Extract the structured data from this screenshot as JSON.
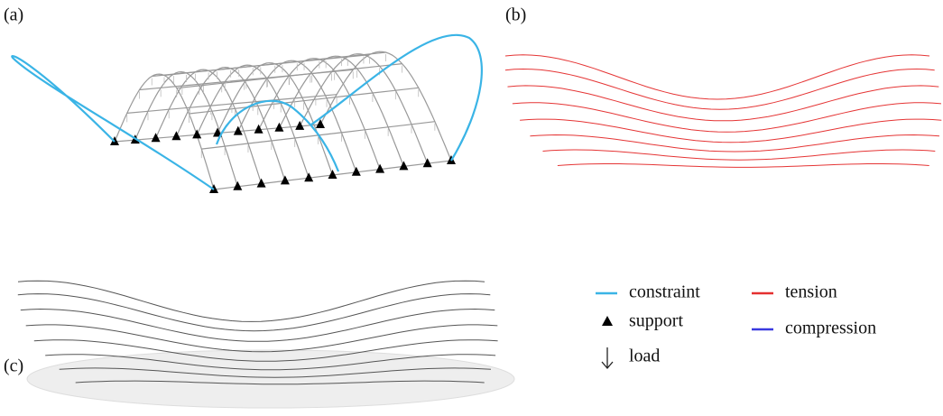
{
  "panel_labels": [
    "(a)",
    "(b)",
    "(c)"
  ],
  "legend": [
    {
      "label": "constraint"
    },
    {
      "label": "support"
    },
    {
      "label": "load"
    },
    {
      "label": "tension"
    },
    {
      "label": "compression"
    }
  ]
}
